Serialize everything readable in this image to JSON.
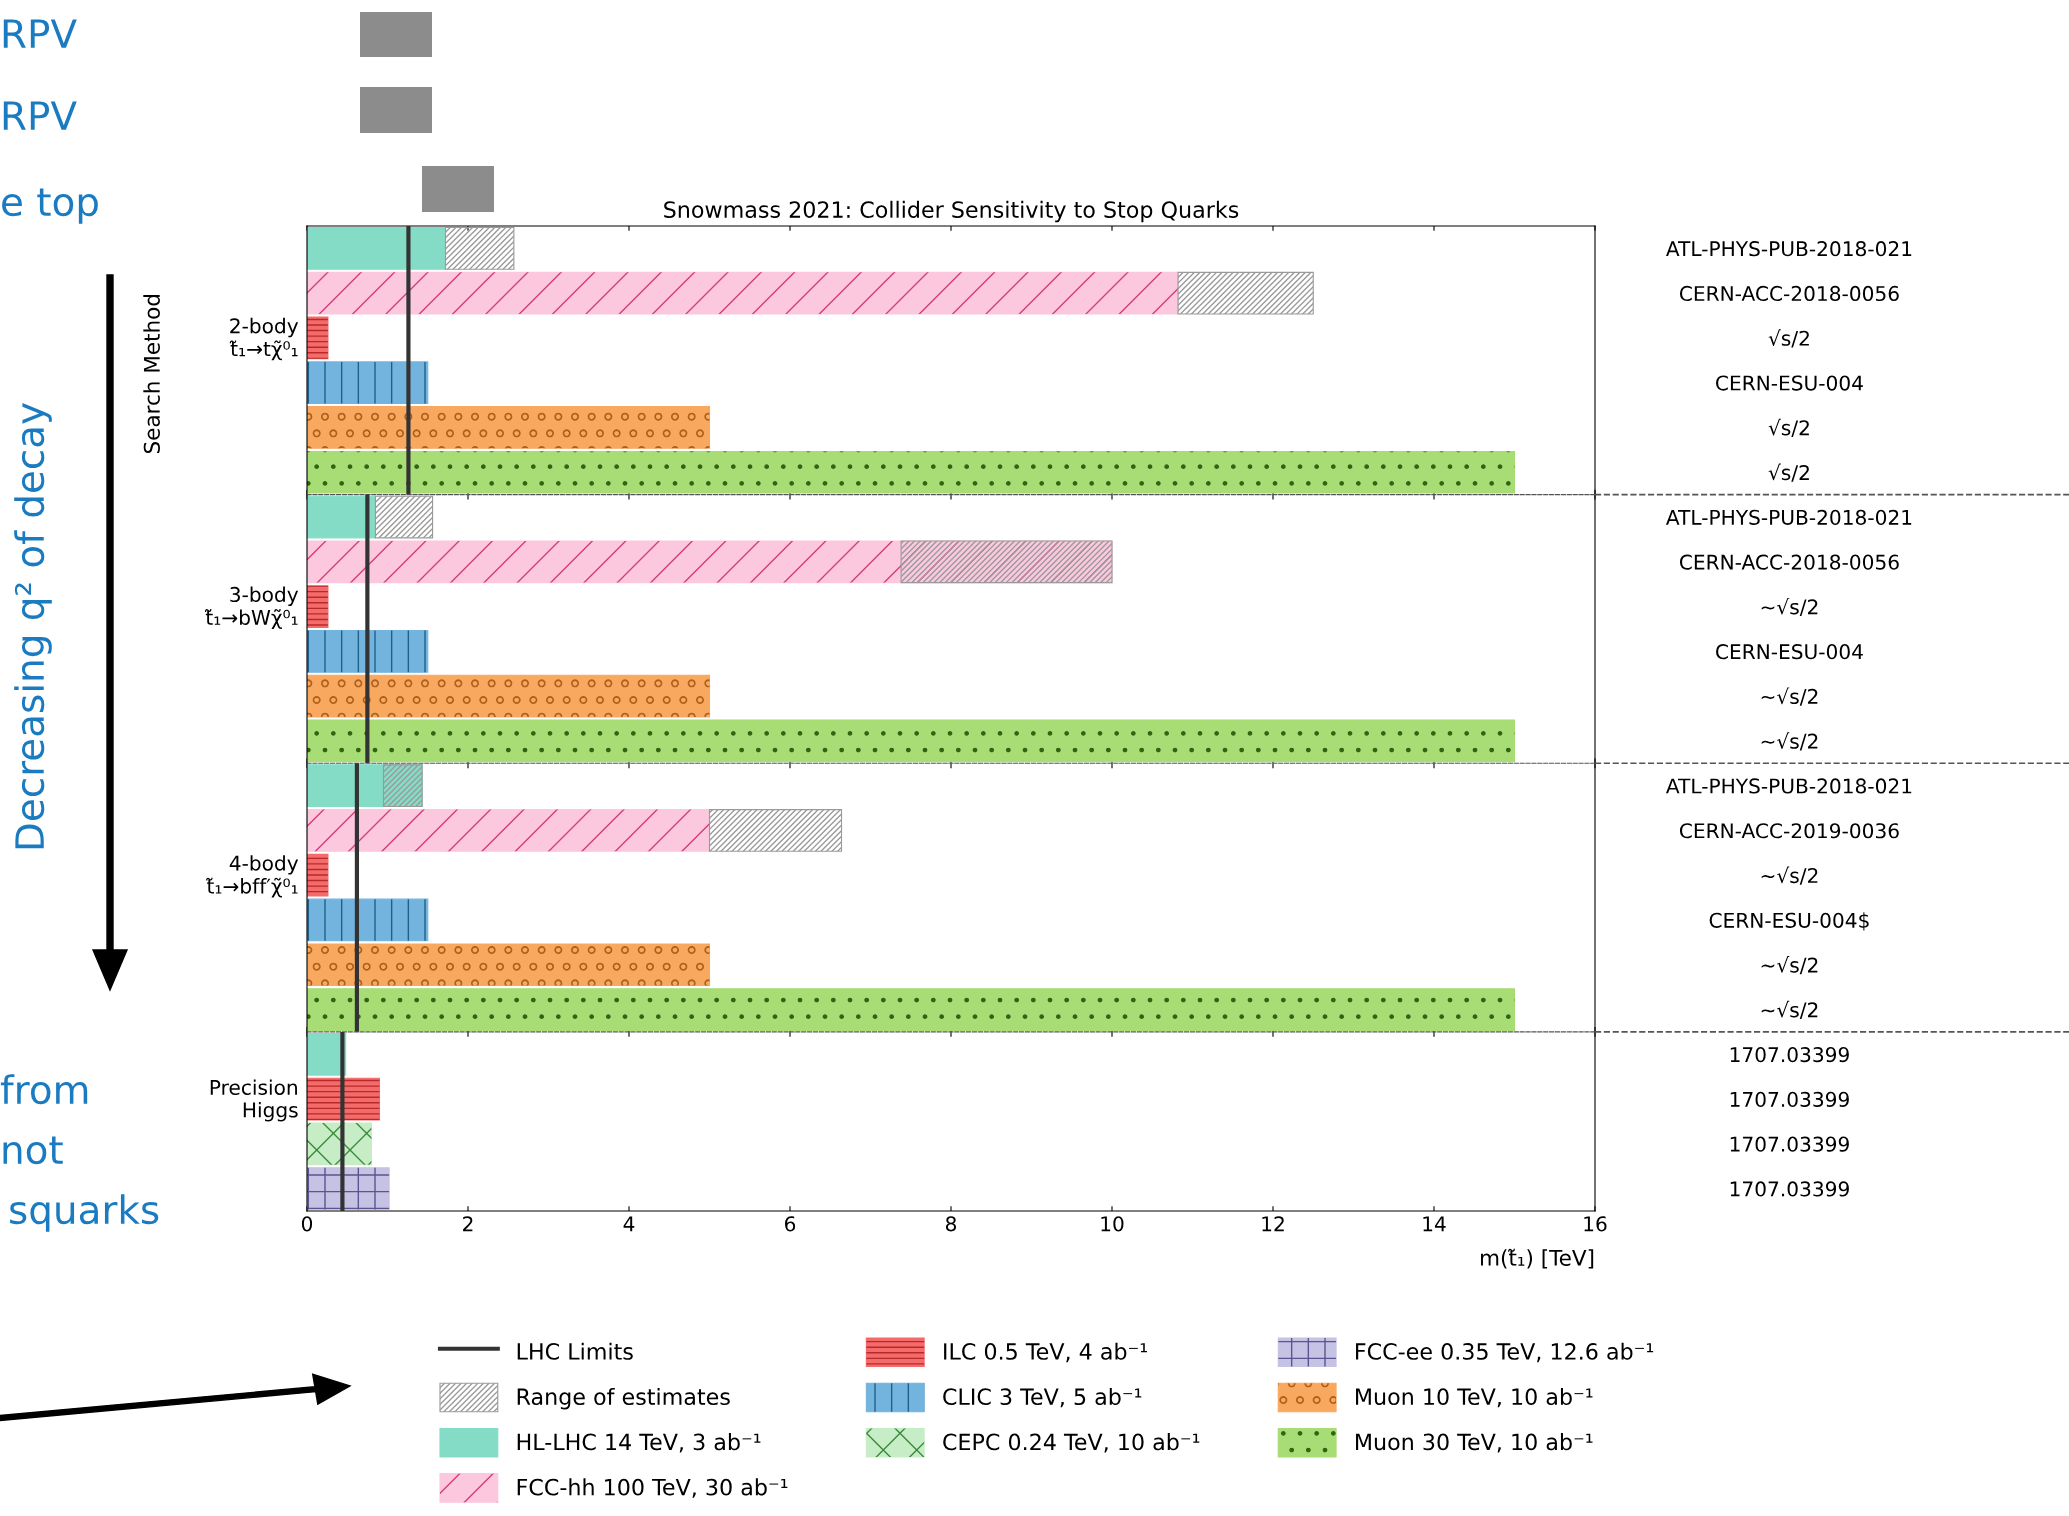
{
  "chart_data": [
    {
      "type": "bar",
      "orientation": "horizontal",
      "title": "Snowmass 2021: Collider Sensitivity to Stop Quarks",
      "ylabel": "2-body\nt̃₁→tχ̃⁰₁",
      "annotations": [
        "Search Method"
      ],
      "legend": "bottom",
      "categories": [
        "ATL-PHYS-PUB-2018-021",
        "CERN-ACC-2018-0056",
        "√s/2",
        "CERN-ESU-004",
        "√s/2",
        "√s/2"
      ],
      "xlim": [
        0,
        16
      ],
      "xticks": [
        0,
        2,
        4,
        6,
        8,
        10,
        12,
        14,
        16
      ],
      "tick_labels": "y",
      "ref_lines": [
        {
          "axis": "x",
          "value": 1.26,
          "label": "LHC Limits",
          "color": "#333333"
        }
      ],
      "series": [
        {
          "name": "Range of estimates",
          "color": "#9a9a9a",
          "values": [
            0.85,
            1.68,
            null,
            null,
            null,
            null
          ],
          "base": [
            1.72,
            10.82,
            null,
            null,
            null,
            null
          ]
        },
        {
          "name": "HL-LHC 14 TeV, 3 ab⁻¹",
          "color": "#84dcc6",
          "values": [
            1.72,
            null,
            null,
            null,
            null,
            null
          ]
        },
        {
          "name": "FCC-hh 100 TeV, 30 ab⁻¹",
          "color": "#fbc8de",
          "values": [
            null,
            10.82,
            null,
            null,
            null,
            null
          ]
        },
        {
          "name": "ILC 0.5 TeV, 4 ab⁻¹",
          "color": "#f46b6b",
          "values": [
            null,
            null,
            0.26,
            null,
            null,
            null
          ]
        },
        {
          "name": "CLIC 3 TeV, 5 ab⁻¹",
          "color": "#73b4de",
          "values": [
            null,
            null,
            null,
            1.5,
            null,
            null
          ]
        },
        {
          "name": "CEPC 0.24 TeV, 10 ab⁻¹",
          "color": "#c7edc7",
          "values": [
            null,
            null,
            null,
            null,
            null,
            null
          ]
        },
        {
          "name": "FCC-ee 0.35 TeV, 12.6 ab⁻¹",
          "color": "#c5c2e4",
          "values": [
            null,
            null,
            null,
            null,
            null,
            null
          ]
        },
        {
          "name": "Muon 10 TeV, 10 ab⁻¹",
          "color": "#f9a95f",
          "values": [
            null,
            null,
            null,
            null,
            5.0,
            null
          ]
        },
        {
          "name": "Muon 30 TeV, 10 ab⁻¹",
          "color": "#a8dc74",
          "values": [
            null,
            null,
            null,
            null,
            null,
            15.0
          ]
        }
      ]
    },
    {
      "type": "bar",
      "orientation": "horizontal",
      "ylabel": "3-body\nt̃₁→bWχ̃⁰₁",
      "categories": [
        "ATL-PHYS-PUB-2018-021",
        "CERN-ACC-2018-0056",
        "~√s/2",
        "CERN-ESU-004",
        "~√s/2",
        "~√s/2"
      ],
      "xlim": [
        0,
        16
      ],
      "xticks": [
        0,
        2,
        4,
        6,
        8,
        10,
        12,
        14,
        16
      ],
      "tick_labels": "y",
      "ref_lines": [
        {
          "axis": "x",
          "value": 0.75,
          "color": "#333333"
        }
      ],
      "series": [
        {
          "color": "#9a9a9a",
          "values": [
            0.71,
            2.62,
            null,
            null,
            null,
            null
          ],
          "base": [
            0.85,
            7.38,
            null,
            null,
            null,
            null
          ]
        },
        {
          "color": "#84dcc6",
          "values": [
            0.85,
            null,
            null,
            null,
            null,
            null
          ]
        },
        {
          "color": "#fbc8de",
          "values": [
            null,
            10.0,
            null,
            null,
            null,
            null
          ]
        },
        {
          "color": "#f46b6b",
          "values": [
            null,
            null,
            0.26,
            null,
            null,
            null
          ]
        },
        {
          "color": "#73b4de",
          "values": [
            null,
            null,
            null,
            1.5,
            null,
            null
          ]
        },
        {
          "values": [
            null,
            null,
            null,
            null,
            null,
            null
          ]
        },
        {
          "values": [
            null,
            null,
            null,
            null,
            null,
            null
          ]
        },
        {
          "color": "#f9a95f",
          "values": [
            null,
            null,
            null,
            null,
            5.0,
            null
          ]
        },
        {
          "color": "#a8dc74",
          "values": [
            null,
            null,
            null,
            null,
            null,
            15.0
          ]
        }
      ]
    },
    {
      "type": "bar",
      "orientation": "horizontal",
      "ylabel": "4-body\nt̃₁→bff′χ̃⁰₁",
      "categories": [
        "ATL-PHYS-PUB-2018-021",
        "CERN-ACC-2019-0036",
        "~√s/2",
        "CERN-ESU-004$",
        "~√s/2",
        "~√s/2"
      ],
      "xlim": [
        0,
        16
      ],
      "xticks": [
        0,
        2,
        4,
        6,
        8,
        10,
        12,
        14,
        16
      ],
      "tick_labels": "y",
      "ref_lines": [
        {
          "axis": "x",
          "value": 0.62,
          "color": "#333333"
        }
      ],
      "series": [
        {
          "color": "#9a9a9a",
          "values": [
            0.48,
            1.64,
            null,
            null,
            null,
            null
          ],
          "base": [
            0.95,
            5.0,
            null,
            null,
            null,
            null
          ]
        },
        {
          "color": "#84dcc6",
          "values": [
            1.43,
            null,
            null,
            null,
            null,
            null
          ]
        },
        {
          "color": "#fbc8de",
          "values": [
            null,
            5.0,
            null,
            null,
            null,
            null
          ]
        },
        {
          "color": "#f46b6b",
          "values": [
            null,
            null,
            0.26,
            null,
            null,
            null
          ]
        },
        {
          "color": "#73b4de",
          "values": [
            null,
            null,
            null,
            1.5,
            null,
            null
          ]
        },
        {
          "values": [
            null,
            null,
            null,
            null,
            null,
            null
          ]
        },
        {
          "values": [
            null,
            null,
            null,
            null,
            null,
            null
          ]
        },
        {
          "color": "#f9a95f",
          "values": [
            null,
            null,
            null,
            null,
            5.0,
            null
          ]
        },
        {
          "color": "#a8dc74",
          "values": [
            null,
            null,
            null,
            null,
            null,
            15.0
          ]
        }
      ]
    },
    {
      "type": "bar",
      "orientation": "horizontal",
      "ylabel": "Precision\nHiggs",
      "xlabel": "m(t̃₁) [TeV]",
      "categories": [
        "1707.03399",
        "1707.03399",
        "1707.03399",
        "1707.03399"
      ],
      "xlim": [
        0,
        16
      ],
      "xticks": [
        0,
        2,
        4,
        6,
        8,
        10,
        12,
        14,
        16
      ],
      "ref_lines": [
        {
          "axis": "x",
          "value": 0.44,
          "color": "#333333"
        }
      ],
      "series": [
        {
          "values": [
            null,
            null,
            null,
            null
          ],
          "base": [
            null,
            null,
            null,
            null
          ]
        },
        {
          "color": "#84dcc6",
          "values": [
            0.48,
            null,
            null,
            null
          ]
        },
        {
          "values": [
            null,
            null,
            null,
            null
          ]
        },
        {
          "color": "#f46b6b",
          "values": [
            null,
            0.9,
            null,
            null
          ]
        },
        {
          "values": [
            null,
            null,
            null,
            null
          ]
        },
        {
          "color": "#c7edc7",
          "values": [
            null,
            null,
            0.8,
            null
          ]
        },
        {
          "color": "#c5c2e4",
          "values": [
            null,
            null,
            null,
            1.02
          ]
        },
        {
          "values": [
            null,
            null,
            null,
            null
          ]
        },
        {
          "values": [
            null,
            null,
            null,
            null
          ]
        }
      ]
    },
    {
      "type": "other",
      "annotations": [
        "RPV",
        "RPV",
        "e top",
        "Decreasing q² of decay",
        "from",
        "not",
        "squarks"
      ]
    }
  ]
}
